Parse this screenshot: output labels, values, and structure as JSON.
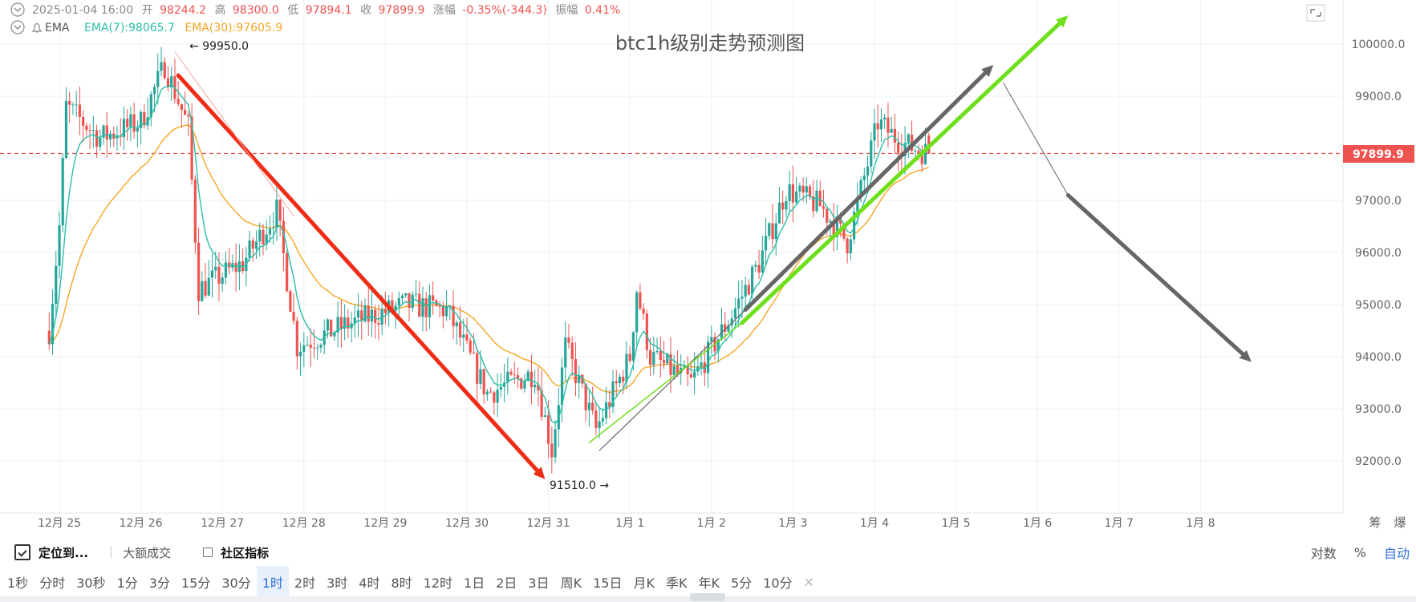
{
  "header": {
    "date": "2025-01-04 16:00",
    "open_label": "开",
    "open_value": "98244.2",
    "high_label": "高",
    "high_value": "98300.0",
    "low_label": "低",
    "low_value": "97894.1",
    "close_label": "收",
    "close_value": "97899.9",
    "change_label": "涨幅",
    "change_value": "-0.35%(-344.3)",
    "amplitude_label": "振幅",
    "amplitude_value": "0.41%",
    "indicator_label": "EMA",
    "ema7_label": "EMA(7):98065.7",
    "ema30_label": "EMA(30):97605.9"
  },
  "colors": {
    "up": "#26a69a",
    "down": "#ef5350",
    "ema7": "#2bbfa8",
    "ema30": "#f5a623",
    "red_arrow": "#f02c16",
    "gray_arrow": "#666666",
    "green_arrow": "#6ee01b",
    "price_tag": "#ef5350",
    "grid": "#eef0f3",
    "axis_text": "#666666"
  },
  "chart_data": {
    "type": "candlestick",
    "title": "btc1h级别走势预测图",
    "interval": "1h",
    "y_axis": {
      "ticks": [
        "100000.0",
        "99000.0",
        "97000.0",
        "96000.0",
        "95000.0",
        "94000.0",
        "93000.0",
        "92000.0"
      ],
      "ylim": [
        91300,
        100500
      ],
      "position": "right",
      "grid": true
    },
    "x_axis": {
      "ticks": [
        "12月 25",
        "12月 26",
        "12月 27",
        "12月 28",
        "12月 29",
        "12月 30",
        "12月 31",
        "1月 1",
        "1月 2",
        "1月 3",
        "1月 4",
        "1月 5",
        "1月 6",
        "1月 7",
        "1月 8"
      ],
      "right_labels": [
        "筹",
        "爆"
      ]
    },
    "key_points": [
      {
        "time": "2024-12-24 21:00",
        "price": 94500
      },
      {
        "time": "2024-12-25 00:00",
        "price": 96500
      },
      {
        "time": "2024-12-25 02:00",
        "price": 98800
      },
      {
        "time": "2024-12-25 12:00",
        "price": 98200
      },
      {
        "time": "2024-12-26 00:00",
        "price": 98500
      },
      {
        "time": "2024-12-26 07:00",
        "price": 99600
      },
      {
        "time": "2024-12-26 14:00",
        "price": 98400
      },
      {
        "time": "2024-12-26 17:00",
        "price": 95300
      },
      {
        "time": "2024-12-27 06:00",
        "price": 95800
      },
      {
        "time": "2024-12-27 16:00",
        "price": 96800
      },
      {
        "time": "2024-12-27 22:00",
        "price": 94200
      },
      {
        "time": "2024-12-28 12:00",
        "price": 94600
      },
      {
        "time": "2024-12-29 06:00",
        "price": 95000
      },
      {
        "time": "2024-12-29 18:00",
        "price": 94900
      },
      {
        "time": "2024-12-30 06:00",
        "price": 93300
      },
      {
        "time": "2024-12-30 20:00",
        "price": 93700
      },
      {
        "time": "2024-12-31 01:00",
        "price": 92200
      },
      {
        "time": "2024-12-31 05:00",
        "price": 94200
      },
      {
        "time": "2024-12-31 14:00",
        "price": 92600
      },
      {
        "time": "2025-01-01 00:00",
        "price": 94000
      },
      {
        "time": "2025-01-01 02:00",
        "price": 95300
      },
      {
        "time": "2025-01-01 06:00",
        "price": 94000
      },
      {
        "time": "2025-01-01 18:00",
        "price": 93500
      },
      {
        "time": "2025-01-02 06:00",
        "price": 94800
      },
      {
        "time": "2025-01-02 14:00",
        "price": 95800
      },
      {
        "time": "2025-01-02 22:00",
        "price": 97200
      },
      {
        "time": "2025-01-03 08:00",
        "price": 96900
      },
      {
        "time": "2025-01-03 16:00",
        "price": 96200
      },
      {
        "time": "2025-01-03 22:00",
        "price": 97700
      },
      {
        "time": "2025-01-04 01:00",
        "price": 98500
      },
      {
        "time": "2025-01-04 08:00",
        "price": 98100
      },
      {
        "time": "2025-01-04 16:00",
        "price": 97900
      }
    ],
    "annotations": {
      "high_marker": "99950.0",
      "low_marker": "91510.0",
      "current_price": "97899.9"
    },
    "drawn_lines": [
      {
        "name": "red-downtrend-arrow",
        "from": {
          "time": "2024-12-26 11:00",
          "price": 99400
        },
        "to": {
          "time": "2024-12-30 23:00",
          "price": 91650
        }
      },
      {
        "name": "thin-red-guide",
        "from": {
          "time": "2024-12-26 10:00",
          "price": 99850
        },
        "to": {
          "time": "2024-12-27 21:00",
          "price": 96700
        }
      },
      {
        "name": "gray-uptrend-thin",
        "from": {
          "time": "2024-12-31 15:00",
          "price": 92200
        },
        "to": {
          "time": "2025-01-02 10:00",
          "price": 94900
        }
      },
      {
        "name": "gray-uptrend-arrow",
        "from": {
          "time": "2025-01-02 10:00",
          "price": 94900
        },
        "to": {
          "time": "2025-01-05 11:00",
          "price": 99600
        }
      },
      {
        "name": "green-uptrend-thin",
        "from": {
          "time": "2024-12-31 12:00",
          "price": 92350
        },
        "to": {
          "time": "2025-01-02 09:00",
          "price": 94650
        }
      },
      {
        "name": "green-uptrend-arrow",
        "from": {
          "time": "2025-01-02 09:00",
          "price": 94650
        },
        "to": {
          "time": "2025-01-06 09:00",
          "price": 100550
        }
      },
      {
        "name": "gray-forecast-thin",
        "from": {
          "time": "2025-01-05 14:00",
          "price": 99250
        },
        "to": {
          "time": "2025-01-06 09:00",
          "price": 97100
        }
      },
      {
        "name": "gray-forecast-arrow",
        "from": {
          "time": "2025-01-06 09:00",
          "price": 97100
        },
        "to": {
          "time": "2025-01-08 15:00",
          "price": 93900
        }
      }
    ]
  },
  "toolbar": {
    "locate_label": "定位到...",
    "large_trades_label": "大额成交",
    "community_label": "社区指标",
    "scale_options": [
      "对数",
      "%",
      "自动"
    ],
    "timeframes": [
      "1秒",
      "分时",
      "30秒",
      "1分",
      "3分",
      "15分",
      "30分",
      "1时",
      "2时",
      "3时",
      "4时",
      "8时",
      "12时",
      "1日",
      "2日",
      "3日",
      "周K",
      "15日",
      "月K",
      "季K",
      "年K",
      "5分",
      "10分"
    ],
    "active_timeframe": "1时"
  }
}
